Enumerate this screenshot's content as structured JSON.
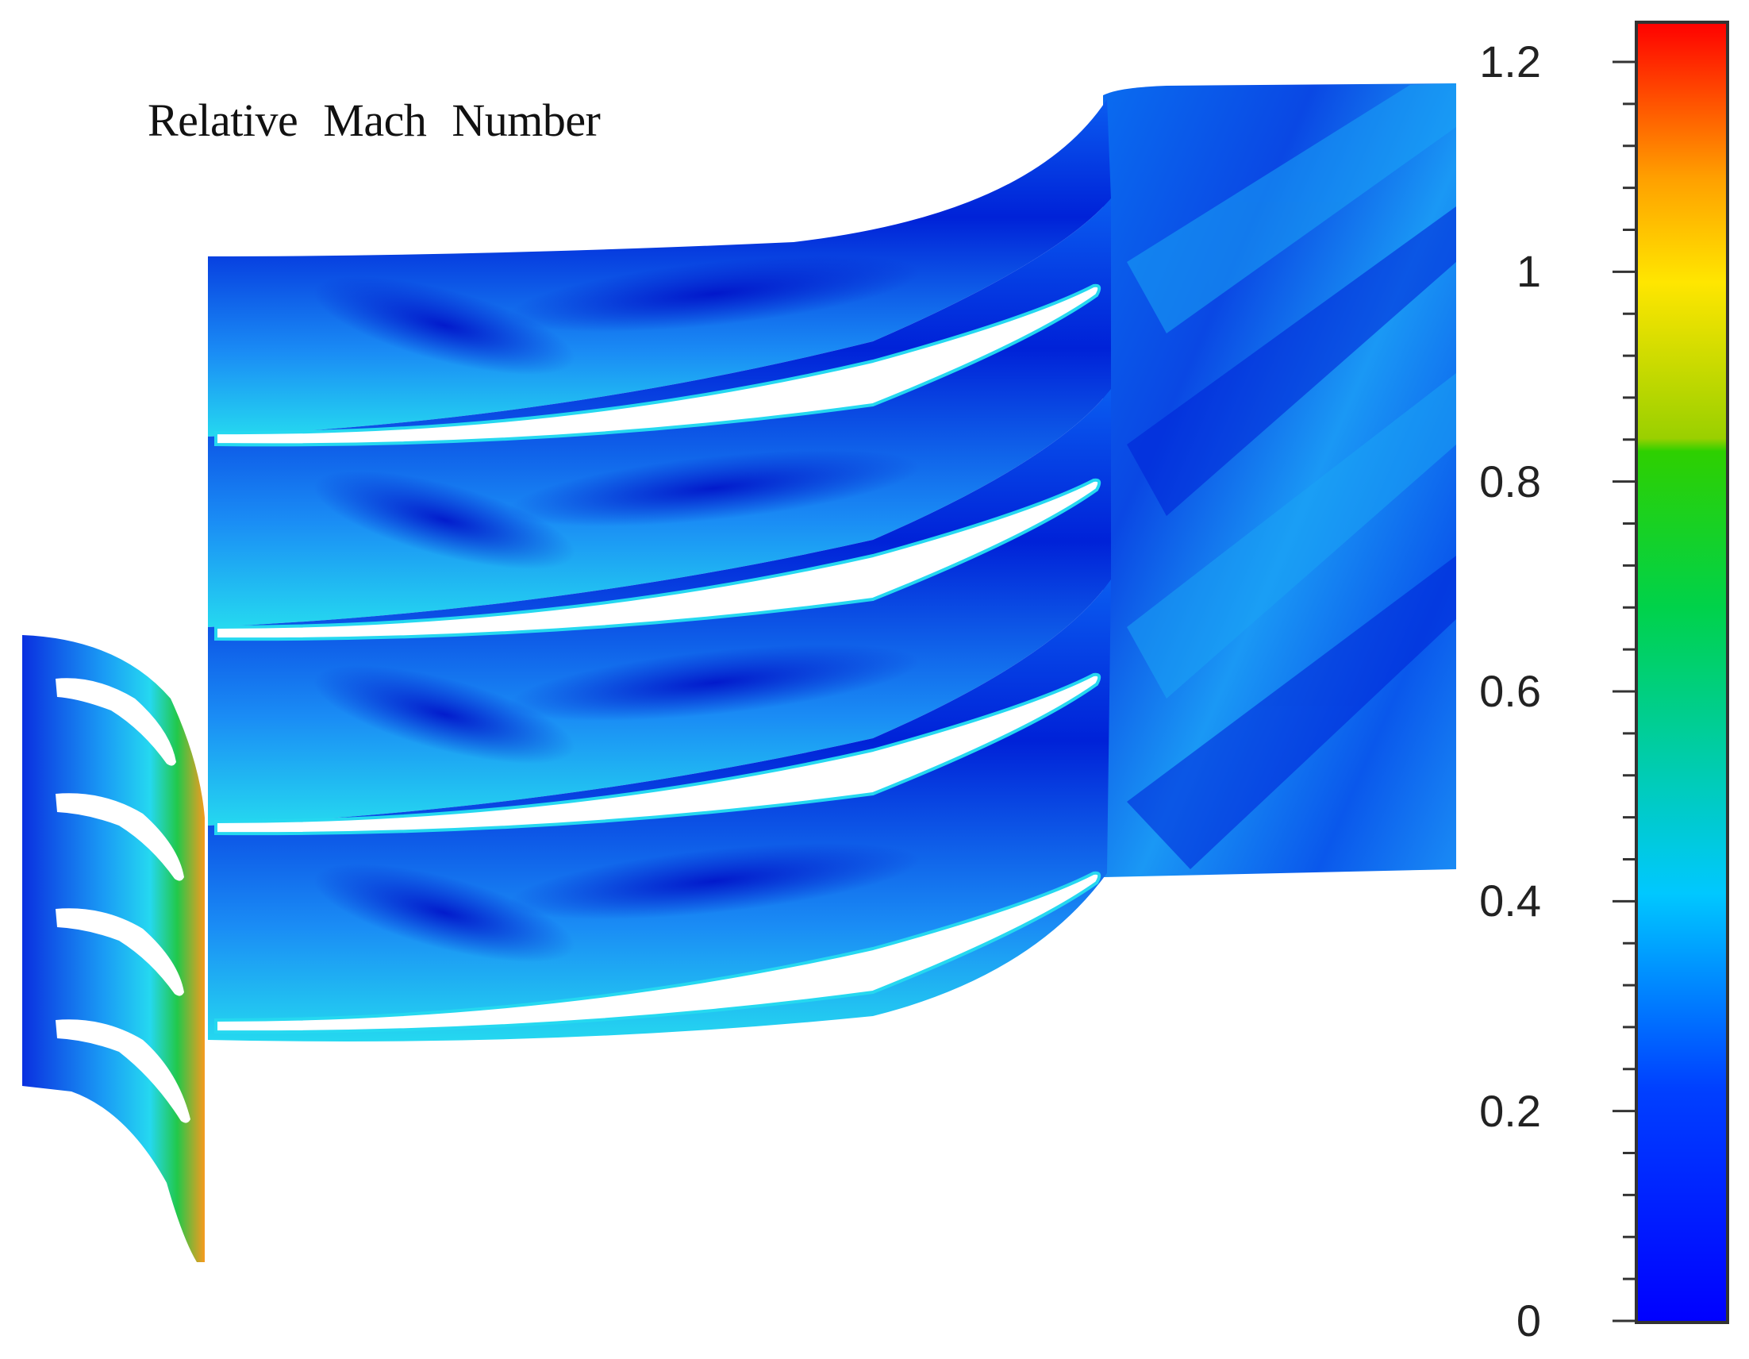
{
  "title": "Relative   Mach Number",
  "colorbar": {
    "min": 0,
    "max": 1.2,
    "tick_labels": [
      "1.2",
      "1",
      "0.8",
      "0.6",
      "0.4",
      "0.2",
      "0"
    ],
    "tick_values": [
      1.2,
      1.0,
      0.8,
      0.6,
      0.4,
      0.2,
      0.0
    ],
    "colors": {
      "low": "#0000ff",
      "mid_low": "#00c8ff",
      "mid": "#00d24a",
      "mid_high": "#ffe600",
      "high": "#ff0000"
    }
  },
  "flow_colors": {
    "deep_blue": "#0022d8",
    "blue": "#0a5cf0",
    "light_blue": "#1aa4f5",
    "cyan": "#25d8f0",
    "green": "#22c84a",
    "orange": "#f79a1e"
  }
}
